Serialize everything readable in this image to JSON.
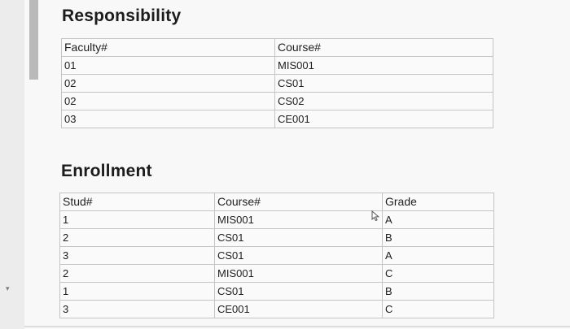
{
  "responsibility": {
    "title": "Responsibility",
    "headers": [
      "Faculty#",
      "Course#"
    ],
    "rows": [
      [
        "01",
        "MIS001"
      ],
      [
        "02",
        "CS01"
      ],
      [
        "02",
        "CS02"
      ],
      [
        "03",
        "CE001"
      ]
    ]
  },
  "enrollment": {
    "title": "Enrollment",
    "headers": [
      "Stud#",
      "Course#",
      "Grade"
    ],
    "rows": [
      [
        "1",
        "MIS001",
        "A"
      ],
      [
        "2",
        "CS01",
        "B"
      ],
      [
        "3",
        "CS01",
        "A"
      ],
      [
        "2",
        "MIS001",
        "C"
      ],
      [
        "1",
        "CS01",
        "B"
      ],
      [
        "3",
        "CE001",
        "C"
      ]
    ]
  },
  "icons": {
    "cursor": "pointer-cursor-icon",
    "side_marker": "caret-marker-icon"
  },
  "side": {
    "marker": "▾"
  }
}
